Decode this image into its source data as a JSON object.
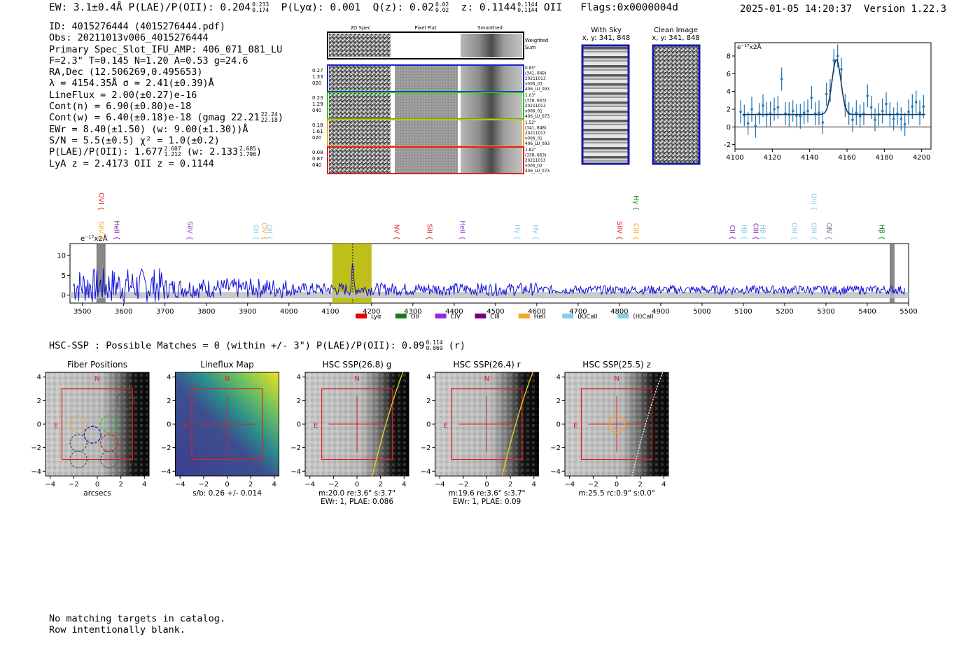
{
  "header": {
    "summary": "EW: 3.1±0.4Å  P(LAE)/P(OII): 0.204",
    "summary_sup": "0.233",
    "summary_sub": "0.174",
    "plya": "P(Lyα): 0.001",
    "qz": "Q(z): 0.02",
    "qz_sup": "0.02",
    "qz_sub": "0.02",
    "z": "z: 0.1144",
    "z_sup": "0.1144",
    "z_sub": "0.1144",
    "z_line": "OII",
    "flags": "Flags:0x0000004d",
    "timestamp": "2025-01-05 14:20:37",
    "version": "Version 1.22.3"
  },
  "info": {
    "id": "ID: 4015276444 (4015276444.pdf)",
    "obs": "Obs: 20211013v006_4015276444",
    "slot": "Primary Spec_Slot_IFU_AMP: 406_071_081_LU",
    "params": "F=2.3\"  T=0.145  N=1.20  A=0.53  g=24.6",
    "radec": "RA,Dec (12.506269,0.495653)",
    "lambda": "λ = 4154.35Å  σ = 2.41(±0.39)Å",
    "lineflux": "LineFlux = 2.00(±0.27)e-16",
    "contn": "Cont(n) = 6.90(±0.80)e-18",
    "contw": "Cont(w) = 6.40(±0.18)e-18 (gmag 22.21",
    "contw_sup": "22.24",
    "contw_sub": "22.18",
    "contw_end": ")",
    "ewr": "EWr = 8.40(±1.50) (w: 9.00(±1.30))Å",
    "sn": "S/N = 5.5(±0.5)  χ² = 1.0(±0.2)",
    "plae": "P(LAE)/P(OII): 1.677",
    "plae_sup": "2.607",
    "plae_sub": "1.212",
    "plae_w": "(w: 2.133",
    "plae_w_sup": "2.685",
    "plae_w_sub": "1.796",
    "plae_w_end": ")",
    "lyaz": "LyA z = 2.4173  OII z = 0.1144"
  },
  "cutouts": {
    "col_titles": [
      "2D Spec",
      "Pixel Flat",
      "Smoothed"
    ],
    "weighted_label": "Weighted Sum",
    "rows": [
      {
        "left": [
          "0.27",
          "1.33",
          "020"
        ],
        "right": [
          "0.85\"",
          "(341, 848)",
          "20211013",
          "v006_03",
          "406_LU_093"
        ],
        "color": "#1f1fcc"
      },
      {
        "left": [
          "0.23",
          "1.29",
          "040"
        ],
        "right": [
          "1.03\"",
          "(338, 663)",
          "20211013",
          "v006_01",
          "406_LU_073"
        ],
        "color": "#22cc22"
      },
      {
        "left": [
          "0.18",
          "1.61",
          "020"
        ],
        "right": [
          "1.52\"",
          "(341, 848)",
          "20211013",
          "v006_01",
          "406_LU_093"
        ],
        "color": "#f5a623"
      },
      {
        "left": [
          "0.08",
          "0.87",
          "040"
        ],
        "right": [
          "1.82\"",
          "(338, 663)",
          "20211013",
          "v006_02",
          "406_LU_073"
        ],
        "color": "#e02020"
      }
    ],
    "with_sky_title": "With Sky",
    "with_sky_coords": "x, y: 341, 848",
    "clean_title": "Clean Image",
    "clean_coords": "x, y: 341, 848"
  },
  "footer": {
    "line1": "No matching targets in catalog.",
    "line2": "Row intentionally blank."
  },
  "hsc": {
    "summary": "HSC-SSP : Possible Matches = 0 (within +/- 3\")  P(LAE)/P(OII): 0.09",
    "sup": "0.114",
    "sub": "0.069",
    "end": "(r)"
  },
  "chart_data": [
    {
      "type": "line",
      "title": "",
      "ylabel": "e⁻¹⁷x2Å",
      "xlim": [
        4100,
        4205
      ],
      "ylim": [
        -2.5,
        9.5
      ],
      "xticks": [
        4100,
        4120,
        4140,
        4160,
        4180,
        4200
      ],
      "yticks": [
        -2,
        0,
        2,
        4,
        6,
        8
      ],
      "points_x": [
        4103,
        4105,
        4107,
        4109,
        4111,
        4113,
        4115,
        4117,
        4119,
        4121,
        4123,
        4125,
        4127,
        4129,
        4131,
        4133,
        4135,
        4137,
        4139,
        4141,
        4143,
        4145,
        4147,
        4149,
        4151,
        4153,
        4155,
        4157,
        4159,
        4161,
        4163,
        4165,
        4167,
        4169,
        4171,
        4173,
        4175,
        4177,
        4179,
        4181,
        4183,
        4185,
        4187,
        4189,
        4191,
        4193,
        4195,
        4197,
        4199,
        4201
      ],
      "points_y": [
        1.7,
        1.3,
        0.4,
        2.0,
        0.1,
        1.5,
        2.4,
        1.4,
        1.5,
        2.0,
        2.2,
        5.4,
        1.5,
        1.4,
        1.8,
        1.3,
        1.2,
        1.6,
        1.8,
        3.3,
        1.5,
        1.6,
        0.5,
        3.7,
        4.1,
        7.5,
        8.0,
        6.5,
        2.4,
        1.5,
        0.8,
        1.6,
        1.2,
        1.5,
        3.5,
        2.2,
        0.8,
        1.4,
        1.8,
        2.6,
        1.4,
        0.9,
        1.5,
        0.9,
        0.3,
        1.7,
        2.3,
        2.8,
        1.6,
        2.3
      ],
      "errors": [
        1.3,
        1.2,
        1.3,
        1.4,
        1.3,
        1.2,
        1.3,
        1.4,
        1.4,
        1.3,
        1.3,
        1.3,
        1.3,
        1.4,
        1.2,
        1.3,
        1.4,
        1.3,
        1.3,
        1.3,
        1.3,
        1.4,
        1.3,
        1.3,
        1.3,
        1.3,
        1.3,
        1.3,
        1.3,
        1.3,
        1.4,
        1.4,
        1.3,
        1.3,
        1.3,
        1.3,
        1.3,
        1.3,
        1.4,
        1.3,
        1.4,
        1.3,
        1.3,
        1.3,
        1.3,
        1.4,
        1.4,
        1.3,
        1.4,
        1.3
      ],
      "fit": {
        "continuum": 1.4,
        "center": 4154.35,
        "sigma": 2.41,
        "peak": 6.2
      }
    },
    {
      "type": "line",
      "title": "",
      "ylabel": "e⁻¹⁷x2Å",
      "xlim": [
        3470,
        5500
      ],
      "ylim": [
        -2,
        13
      ],
      "xticks": [
        3500,
        3600,
        3700,
        3800,
        3900,
        4000,
        4100,
        4200,
        4300,
        4400,
        4500,
        4600,
        4700,
        4800,
        4900,
        5000,
        5100,
        5200,
        5300,
        5400,
        5500
      ],
      "yticks": [
        0,
        5,
        10
      ],
      "highlight_band": [
        4105,
        4200
      ],
      "highlight_center": 4154.35,
      "masked": [
        [
          3535,
          3555
        ],
        [
          5455,
          5465
        ]
      ],
      "line_markers": [
        {
          "label": "SiIV",
          "x": 3540,
          "color": "#f5a623"
        },
        {
          "label": "OVI",
          "x": 3540,
          "color": "#e02020"
        },
        {
          "label": "HeII",
          "x": 3578,
          "color": "#8e24aa"
        },
        {
          "label": "SiIV",
          "x": 3755,
          "color": "#8e44dd"
        },
        {
          "label": "OII",
          "x": 3915,
          "color": "#87ceeb"
        },
        {
          "label": "CIV",
          "x": 3935,
          "color": "#f5a623"
        },
        {
          "label": "OII",
          "x": 3948,
          "color": "#87ceeb"
        },
        {
          "label": "NV",
          "x": 4255,
          "color": "#e02020"
        },
        {
          "label": "SiII",
          "x": 4335,
          "color": "#e02020"
        },
        {
          "label": "HeII",
          "x": 4415,
          "color": "#8e44dd"
        },
        {
          "label": "Hγ",
          "x": 4548,
          "color": "#87ceeb"
        },
        {
          "label": "Hγ",
          "x": 4592,
          "color": "#87ceeb"
        },
        {
          "label": "SiIV",
          "x": 4795,
          "color": "#e02020"
        },
        {
          "label": "CIII",
          "x": 4835,
          "color": "#f5a623"
        },
        {
          "label": "Hγ",
          "x": 4835,
          "color": "#1a8c1a"
        },
        {
          "label": "CII",
          "x": 5068,
          "color": "#8e24aa"
        },
        {
          "label": "Hβ",
          "x": 5097,
          "color": "#87ceeb"
        },
        {
          "label": "CIII",
          "x": 5125,
          "color": "#8e24aa"
        },
        {
          "label": "Hβ",
          "x": 5142,
          "color": "#87ceeb"
        },
        {
          "label": "OIII",
          "x": 5218,
          "color": "#87ceeb"
        },
        {
          "label": "OIII",
          "x": 5265,
          "color": "#87ceeb"
        },
        {
          "label": "OIII",
          "x": 5265,
          "color": "#87ceeb"
        },
        {
          "label": "CIV",
          "x": 5302,
          "color": "#e02020"
        },
        {
          "label": "OIII",
          "x": 5303,
          "color": "#87ceeb"
        },
        {
          "label": "Hβ",
          "x": 5430,
          "color": "#1a8c1a"
        }
      ],
      "legend": [
        {
          "label": "Lyα",
          "color": "#e8000b"
        },
        {
          "label": "OII",
          "color": "#1a7a1a"
        },
        {
          "label": "CIV",
          "color": "#8b2be2"
        },
        {
          "label": "CIII",
          "color": "#7a007a"
        },
        {
          "label": "HeII",
          "color": "#f5a623"
        },
        {
          "label": "(K)CaII",
          "color": "#87ceeb"
        },
        {
          "label": "(H)CaII",
          "color": "#87ceeb"
        }
      ]
    },
    {
      "type": "heatmap",
      "panels": [
        {
          "title": "Fiber Positions",
          "caption1": "arcsecs",
          "caption2": ""
        },
        {
          "title": "Lineflux Map",
          "caption1": "s/b: 0.26 +/- 0.014",
          "caption2": ""
        },
        {
          "title": "HSC SSP(26.8) g",
          "caption1": "m:20.0  re:3.6\"  s:3.7\"",
          "caption2": "EWr: 1, PLAE: 0.086"
        },
        {
          "title": "HSC SSP(26.4) r",
          "caption1": "m:19.6  re:3.6\"  s:3.7\"",
          "caption2": "EWr: 1, PLAE: 0.09"
        },
        {
          "title": "HSC SSP(25.5) z",
          "caption1": "m:25.5 rc:0.9\"  s:0.0\"",
          "caption2": ""
        }
      ],
      "xticks": [
        -4,
        -2,
        0,
        2,
        4
      ],
      "yticks": [
        4,
        2,
        0,
        -2,
        -4
      ],
      "north_label": "N",
      "east_label": "E"
    }
  ]
}
